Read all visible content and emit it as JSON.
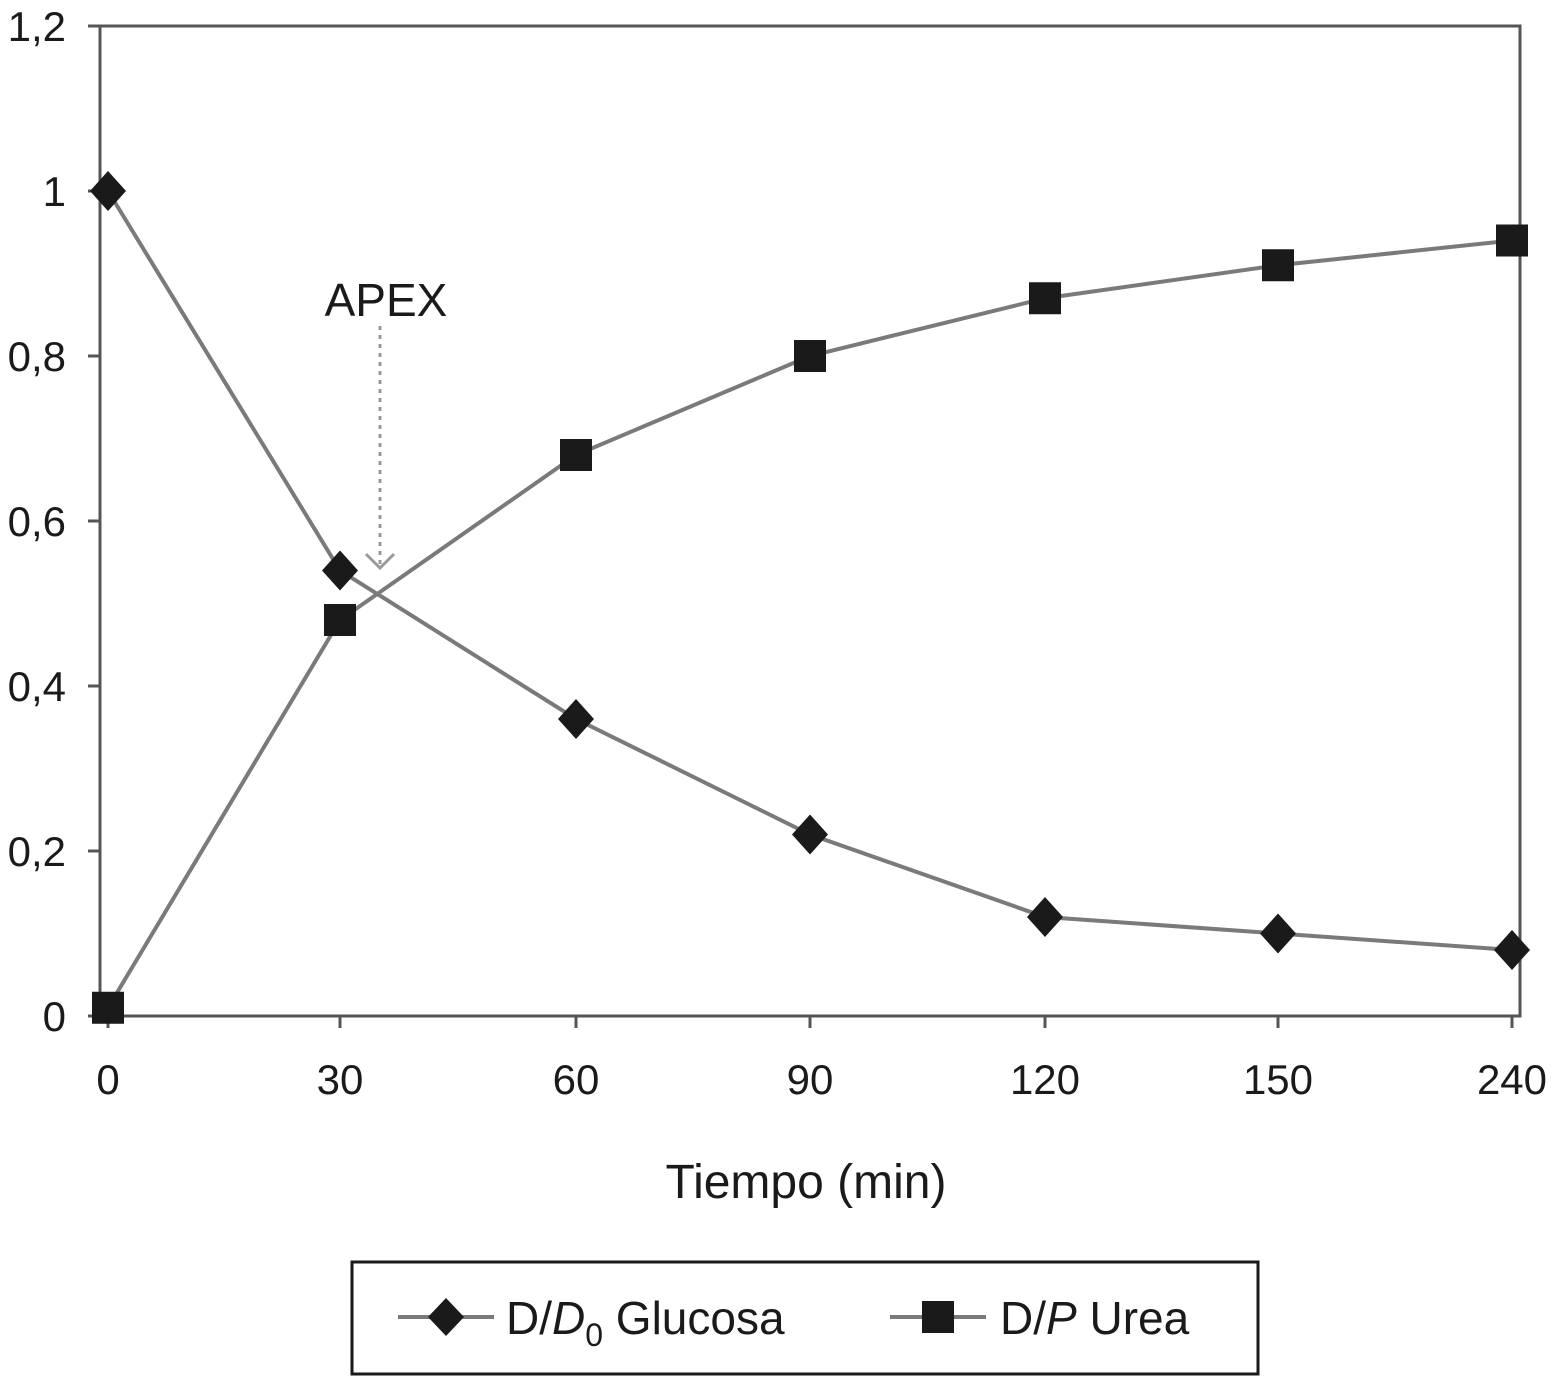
{
  "chart_data": {
    "type": "line",
    "categories": [
      "0",
      "30",
      "60",
      "90",
      "120",
      "150",
      "240"
    ],
    "series": [
      {
        "name_main": "D/",
        "name_italic": "D",
        "name_sub": "0",
        "name_rest": " Glucosa",
        "marker": "diamond",
        "values": [
          1.0,
          0.54,
          0.36,
          0.22,
          0.12,
          0.1,
          0.08
        ]
      },
      {
        "name_main": "D/",
        "name_italic": "P",
        "name_sub": "",
        "name_rest": " Urea",
        "marker": "square",
        "values": [
          0.01,
          0.48,
          0.68,
          0.8,
          0.87,
          0.91,
          0.94
        ]
      }
    ],
    "xlabel": "Tiempo (min)",
    "ylabel": "",
    "ylim": [
      0,
      1.2
    ],
    "yticks": [
      "0",
      "0,2",
      "0,4",
      "0,6",
      "0,8",
      "1",
      "1,2"
    ],
    "annotation": {
      "text": "APEX",
      "x": 34,
      "y": 0.53
    },
    "grid": false,
    "legend_position": "bottom",
    "colors": {
      "line": "#7a7a7a",
      "marker": "#1a1a1a",
      "axis": "#555555",
      "annotation_arrow": "#9a9a9a"
    }
  }
}
